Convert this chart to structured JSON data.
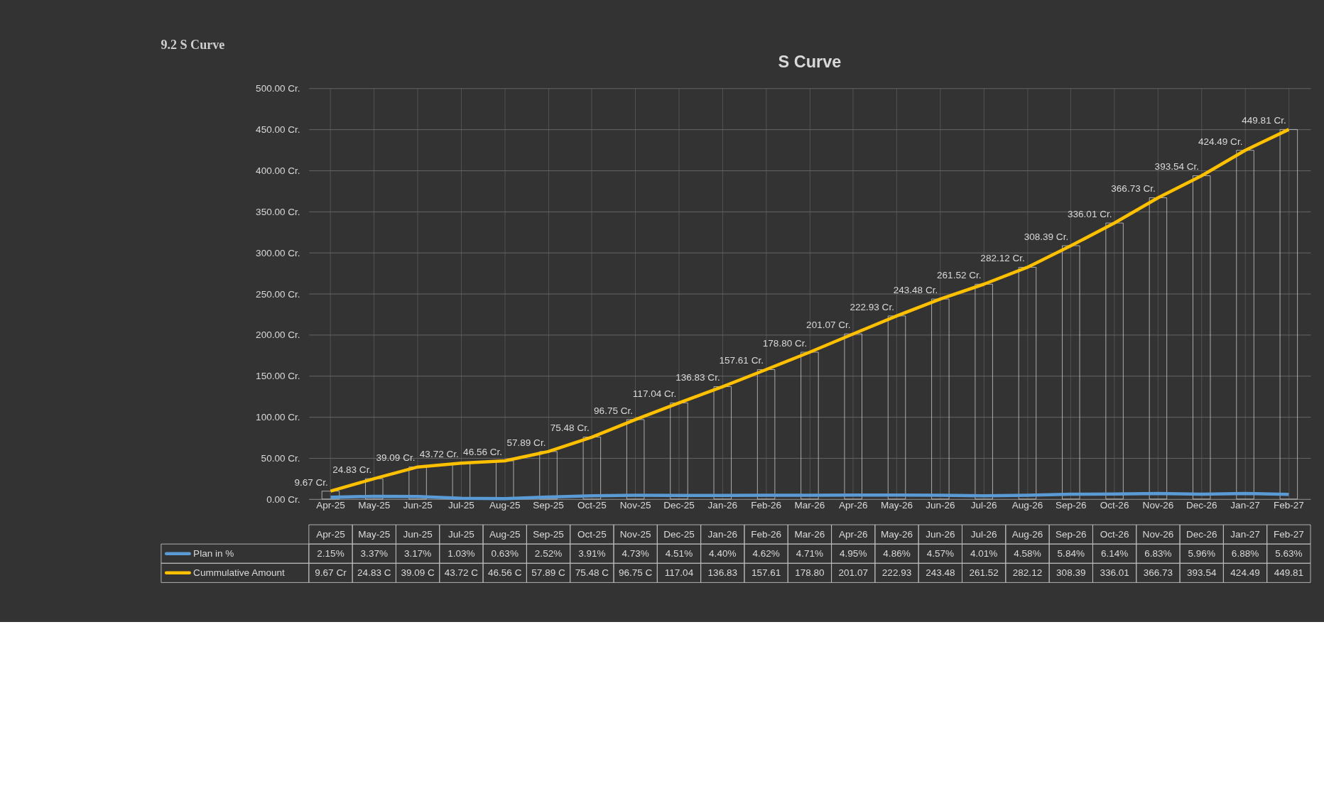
{
  "chart_data": {
    "type": "line",
    "title": "S Curve",
    "annotations": [
      "9.2 S Curve",
      "9.67 Cr",
      "24.83 C",
      "39.09 C",
      "43.72 C",
      "46.56 C",
      "57.89 C",
      "75.48 C",
      "96.75 C",
      "117.04",
      "136.83",
      "157.61",
      "178.80",
      "201.07",
      "222.93",
      "243.48",
      "261.52",
      "282.12",
      "308.39",
      "336.01",
      "366.73",
      "393.54",
      "424.49",
      "449.81"
    ],
    "categories": [
      "Apr-25",
      "May-25",
      "Jun-25",
      "Jul-25",
      "Aug-25",
      "Sep-25",
      "Oct-25",
      "Nov-25",
      "Dec-25",
      "Jan-26",
      "Feb-26",
      "Mar-26",
      "Apr-26",
      "May-26",
      "Jun-26",
      "Jul-26",
      "Aug-26",
      "Sep-26",
      "Oct-26",
      "Nov-26",
      "Dec-26",
      "Jan-27",
      "Feb-27"
    ],
    "series": [
      {
        "type": "bar",
        "color": "#d9d9d9",
        "values": [
          9.67,
          24.83,
          39.09,
          43.72,
          46.56,
          57.89,
          75.48,
          96.75,
          117.04,
          136.83,
          157.61,
          178.8,
          201.07,
          222.93,
          243.48,
          261.52,
          282.12,
          308.39,
          336.01,
          366.73,
          393.54,
          424.49,
          449.81
        ]
      },
      {
        "name": "Plan in %",
        "color": "#5b9bd5",
        "values": [
          2.15,
          3.37,
          3.17,
          1.03,
          0.63,
          2.52,
          3.91,
          4.73,
          4.51,
          4.4,
          4.62,
          4.71,
          4.95,
          4.86,
          4.57,
          4.01,
          4.58,
          5.84,
          6.14,
          6.83,
          5.96,
          6.88,
          5.63
        ],
        "value_labels": [
          "2.15%",
          "3.37%",
          "3.17%",
          "1.03%",
          "0.63%",
          "2.52%",
          "3.91%",
          "4.73%",
          "4.51%",
          "4.40%",
          "4.62%",
          "4.71%",
          "4.95%",
          "4.86%",
          "4.57%",
          "4.01%",
          "4.58%",
          "5.84%",
          "6.14%",
          "6.83%",
          "5.96%",
          "6.88%",
          "5.63%"
        ]
      },
      {
        "name": "Cummulative Amount",
        "color": "#ffc000",
        "values": [
          9.67,
          24.83,
          39.09,
          43.72,
          46.56,
          57.89,
          75.48,
          96.75,
          117.04,
          136.83,
          157.61,
          178.8,
          201.07,
          222.93,
          243.48,
          261.52,
          282.12,
          308.39,
          336.01,
          366.73,
          393.54,
          424.49,
          449.81
        ],
        "value_labels": [
          "9.67 Cr.",
          "24.83 Cr.",
          "39.09 Cr.",
          "43.72 Cr.",
          "46.56 Cr.",
          "57.89 Cr.",
          "75.48 Cr.",
          "96.75 Cr.",
          "117.04 Cr.",
          "136.83 Cr.",
          "157.61 Cr.",
          "178.80 Cr.",
          "201.07 Cr.",
          "222.93 Cr.",
          "243.48 Cr.",
          "261.52 Cr.",
          "282.12 Cr.",
          "308.39 Cr.",
          "336.01 Cr.",
          "366.73 Cr.",
          "393.54 Cr.",
          "424.49 Cr.",
          "449.81 Cr."
        ]
      }
    ],
    "ylim": [
      0,
      500
    ],
    "yticks": [
      {
        "value": 0,
        "label": "0.00 Cr."
      },
      {
        "value": 50,
        "label": "50.00 Cr."
      },
      {
        "value": 100,
        "label": "100.00 Cr."
      },
      {
        "value": 150,
        "label": "150.00 Cr."
      },
      {
        "value": 200,
        "label": "200.00 Cr."
      },
      {
        "value": 250,
        "label": "250.00 Cr."
      },
      {
        "value": 300,
        "label": "300.00 Cr."
      },
      {
        "value": 350,
        "label": "350.00 Cr."
      },
      {
        "value": 400,
        "label": "400.00 Cr."
      },
      {
        "value": 450,
        "label": "450.00 Cr."
      },
      {
        "value": 500,
        "label": "500.00 Cr."
      }
    ],
    "grid": true,
    "legend": "bottom",
    "marker": "none",
    "line_style": "solid"
  }
}
